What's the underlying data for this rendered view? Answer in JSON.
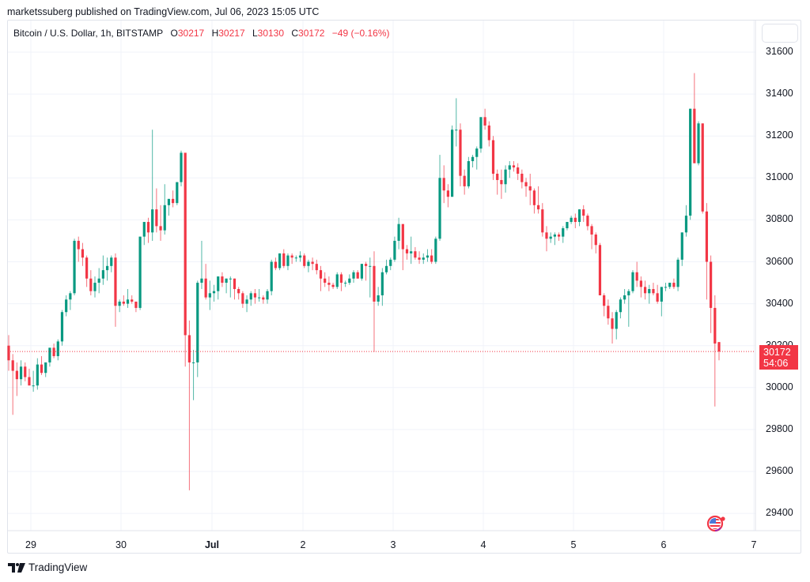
{
  "header": {
    "published_line": "marketssuberg published on TradingView.com, Jul 06, 2023 15:05 UTC"
  },
  "legend": {
    "symbol": "Bitcoin / U.S. Dollar, 1h, BITSTAMP",
    "open_label": "O",
    "open": "30217",
    "high_label": "H",
    "high": "30217",
    "low_label": "L",
    "low": "30130",
    "close_label": "C",
    "close": "30172",
    "change": "−49 (−0.16%)"
  },
  "price_badge": {
    "price": "30172",
    "countdown": "54:06"
  },
  "brand": {
    "name": "TradingView"
  },
  "colors": {
    "up": "#089981",
    "down": "#f23645",
    "grid": "#f0f3fa",
    "axis_text": "#131722"
  },
  "chart_data": {
    "type": "candlestick",
    "title": "Bitcoin / U.S. Dollar, 1h, BITSTAMP",
    "xlabel": "",
    "ylabel": "",
    "ylim": [
      29300,
      31700
    ],
    "y_ticks": [
      31600,
      31400,
      31200,
      31000,
      30800,
      30600,
      30400,
      30200,
      30000,
      29800,
      29600,
      29400
    ],
    "x_ticks": [
      "29",
      "30",
      "Jul",
      "2",
      "3",
      "4",
      "5",
      "6",
      "7"
    ],
    "last_price": 30172,
    "grid": true,
    "candles": [
      [
        30200,
        30250,
        30080,
        30130
      ],
      [
        30130,
        30160,
        29870,
        30080
      ],
      [
        30080,
        30120,
        29960,
        30040
      ],
      [
        30040,
        30130,
        30010,
        30100
      ],
      [
        30100,
        30120,
        30030,
        30050
      ],
      [
        30050,
        30090,
        30020,
        30010
      ],
      [
        30010,
        30080,
        29980,
        30010
      ],
      [
        30010,
        30140,
        29990,
        30110
      ],
      [
        30110,
        30150,
        30060,
        30070
      ],
      [
        30070,
        30120,
        30050,
        30120
      ],
      [
        30120,
        30190,
        30100,
        30190
      ],
      [
        30190,
        30210,
        30140,
        30150
      ],
      [
        30150,
        30230,
        30130,
        30220
      ],
      [
        30220,
        30370,
        30200,
        30360
      ],
      [
        30360,
        30440,
        30340,
        30420
      ],
      [
        30420,
        30460,
        30370,
        30450
      ],
      [
        30450,
        30710,
        30440,
        30700
      ],
      [
        30700,
        30720,
        30600,
        30660
      ],
      [
        30660,
        30690,
        30580,
        30620
      ],
      [
        30620,
        30630,
        30480,
        30520
      ],
      [
        30520,
        30560,
        30440,
        30460
      ],
      [
        30460,
        30530,
        30430,
        30500
      ],
      [
        30500,
        30570,
        30450,
        30520
      ],
      [
        30520,
        30630,
        30490,
        30560
      ],
      [
        30560,
        30620,
        30510,
        30580
      ],
      [
        30580,
        30630,
        30550,
        30620
      ],
      [
        30620,
        30640,
        30290,
        30390
      ],
      [
        30390,
        30420,
        30360,
        30410
      ],
      [
        30410,
        30440,
        30390,
        30400
      ],
      [
        30400,
        30470,
        30380,
        30420
      ],
      [
        30420,
        30440,
        30400,
        30410
      ],
      [
        30410,
        30400,
        30360,
        30380
      ],
      [
        30380,
        30720,
        30370,
        30720
      ],
      [
        30720,
        30780,
        30680,
        30790
      ],
      [
        30790,
        30810,
        30690,
        30740
      ],
      [
        30740,
        31230,
        30700,
        30850
      ],
      [
        30850,
        30950,
        30740,
        30770
      ],
      [
        30770,
        30870,
        30700,
        30750
      ],
      [
        30750,
        30970,
        30730,
        30870
      ],
      [
        30870,
        30900,
        30820,
        30900
      ],
      [
        30900,
        30940,
        30860,
        30880
      ],
      [
        30880,
        30980,
        30870,
        30980
      ],
      [
        30980,
        31130,
        30960,
        31120
      ],
      [
        31120,
        31080,
        30100,
        30250
      ],
      [
        30250,
        30320,
        29510,
        30120
      ],
      [
        30120,
        30180,
        29940,
        30120
      ],
      [
        30120,
        30510,
        30050,
        30500
      ],
      [
        30500,
        30700,
        30470,
        30520
      ],
      [
        30520,
        30590,
        30420,
        30430
      ],
      [
        30430,
        30510,
        30370,
        30450
      ],
      [
        30450,
        30490,
        30410,
        30460
      ],
      [
        30460,
        30530,
        30420,
        30530
      ],
      [
        30530,
        30550,
        30480,
        30500
      ],
      [
        30500,
        30520,
        30450,
        30520
      ],
      [
        30520,
        30530,
        30430,
        30520
      ],
      [
        30520,
        30490,
        30420,
        30470
      ],
      [
        30470,
        30480,
        30420,
        30450
      ],
      [
        30450,
        30460,
        30380,
        30400
      ],
      [
        30400,
        30440,
        30360,
        30420
      ],
      [
        30420,
        30460,
        30390,
        30450
      ],
      [
        30450,
        30470,
        30400,
        30430
      ],
      [
        30430,
        30470,
        30410,
        30430
      ],
      [
        30430,
        30440,
        30400,
        30420
      ],
      [
        30420,
        30470,
        30400,
        30460
      ],
      [
        30460,
        30610,
        30440,
        30600
      ],
      [
        30600,
        30620,
        30560,
        30570
      ],
      [
        30570,
        30640,
        30560,
        30640
      ],
      [
        30640,
        30660,
        30570,
        30580
      ],
      [
        30580,
        30640,
        30560,
        30630
      ],
      [
        30630,
        30640,
        30590,
        30620
      ],
      [
        30620,
        30630,
        30600,
        30620
      ],
      [
        30620,
        30650,
        30600,
        30630
      ],
      [
        30630,
        30640,
        30570,
        30580
      ],
      [
        30580,
        30610,
        30550,
        30600
      ],
      [
        30600,
        30620,
        30560,
        30590
      ],
      [
        30590,
        30610,
        30540,
        30560
      ],
      [
        30560,
        30580,
        30460,
        30520
      ],
      [
        30520,
        30550,
        30480,
        30500
      ],
      [
        30500,
        30530,
        30460,
        30490
      ],
      [
        30490,
        30500,
        30470,
        30480
      ],
      [
        30480,
        30550,
        30470,
        30540
      ],
      [
        30540,
        30550,
        30460,
        30500
      ],
      [
        30500,
        30510,
        30480,
        30500
      ],
      [
        30500,
        30540,
        30490,
        30520
      ],
      [
        30520,
        30560,
        30500,
        30550
      ],
      [
        30550,
        30560,
        30520,
        30520
      ],
      [
        30520,
        30590,
        30510,
        30590
      ],
      [
        30590,
        30600,
        30510,
        30580
      ],
      [
        30580,
        30620,
        30430,
        30580
      ],
      [
        30580,
        30650,
        30170,
        30410
      ],
      [
        30410,
        30480,
        30390,
        30440
      ],
      [
        30440,
        30570,
        30390,
        30550
      ],
      [
        30550,
        30610,
        30540,
        30580
      ],
      [
        30580,
        30620,
        30560,
        30610
      ],
      [
        30610,
        30720,
        30600,
        30700
      ],
      [
        30700,
        30810,
        30660,
        30780
      ],
      [
        30780,
        30750,
        30560,
        30660
      ],
      [
        30660,
        30680,
        30610,
        30640
      ],
      [
        30640,
        30720,
        30590,
        30650
      ],
      [
        30650,
        30670,
        30610,
        30620
      ],
      [
        30620,
        30650,
        30590,
        30610
      ],
      [
        30610,
        30640,
        30590,
        30620
      ],
      [
        30620,
        30660,
        30600,
        30630
      ],
      [
        30630,
        30660,
        30590,
        30600
      ],
      [
        30600,
        30720,
        30590,
        30710
      ],
      [
        30710,
        31110,
        30700,
        31000
      ],
      [
        31000,
        31060,
        30880,
        30940
      ],
      [
        30940,
        30970,
        30860,
        30910
      ],
      [
        30910,
        31250,
        30910,
        31230
      ],
      [
        31230,
        31380,
        31150,
        31230
      ],
      [
        31230,
        31260,
        30960,
        31010
      ],
      [
        31010,
        31040,
        30920,
        30960
      ],
      [
        30960,
        31100,
        30950,
        31080
      ],
      [
        31080,
        31110,
        31050,
        31100
      ],
      [
        31100,
        31150,
        31040,
        31140
      ],
      [
        31140,
        31290,
        31120,
        31290
      ],
      [
        31290,
        31330,
        31230,
        31250
      ],
      [
        31250,
        31270,
        31150,
        31180
      ],
      [
        31180,
        31200,
        30990,
        31020
      ],
      [
        31020,
        31040,
        30920,
        30990
      ],
      [
        30990,
        31040,
        30900,
        30970
      ],
      [
        30970,
        31060,
        30930,
        31040
      ],
      [
        31040,
        31080,
        31000,
        31060
      ],
      [
        31060,
        31080,
        31030,
        31050
      ],
      [
        31050,
        31070,
        30990,
        31020
      ],
      [
        31020,
        31040,
        30950,
        30980
      ],
      [
        30980,
        31000,
        30910,
        30960
      ],
      [
        30960,
        31020,
        30870,
        30940
      ],
      [
        30940,
        30950,
        30830,
        30870
      ],
      [
        30870,
        30960,
        30830,
        30850
      ],
      [
        30850,
        30880,
        30720,
        30740
      ],
      [
        30740,
        30770,
        30650,
        30710
      ],
      [
        30710,
        30740,
        30690,
        30720
      ],
      [
        30720,
        30740,
        30680,
        30730
      ],
      [
        30730,
        30740,
        30700,
        30720
      ],
      [
        30720,
        30770,
        30690,
        30760
      ],
      [
        30760,
        30790,
        30750,
        30790
      ],
      [
        30790,
        30820,
        30780,
        30810
      ],
      [
        30810,
        30830,
        30760,
        30790
      ],
      [
        30790,
        30830,
        30770,
        30850
      ],
      [
        30850,
        30870,
        30790,
        30820
      ],
      [
        30820,
        30830,
        30750,
        30770
      ],
      [
        30770,
        30780,
        30660,
        30730
      ],
      [
        30730,
        30740,
        30640,
        30680
      ],
      [
        30680,
        30690,
        30600,
        30440
      ],
      [
        30440,
        30450,
        30340,
        30390
      ],
      [
        30390,
        30420,
        30300,
        30330
      ],
      [
        30330,
        30360,
        30210,
        30280
      ],
      [
        30280,
        30370,
        30230,
        30360
      ],
      [
        30360,
        30430,
        30330,
        30420
      ],
      [
        30420,
        30470,
        30400,
        30440
      ],
      [
        30440,
        30470,
        30290,
        30460
      ],
      [
        30460,
        30560,
        30450,
        30550
      ],
      [
        30550,
        30600,
        30480,
        30510
      ],
      [
        30510,
        30530,
        30430,
        30480
      ],
      [
        30480,
        30510,
        30420,
        30450
      ],
      [
        30450,
        30490,
        30400,
        30470
      ],
      [
        30470,
        30500,
        30440,
        30450
      ],
      [
        30450,
        30490,
        30400,
        30410
      ],
      [
        30410,
        30480,
        30340,
        30480
      ],
      [
        30480,
        30500,
        30460,
        30480
      ],
      [
        30480,
        30500,
        30470,
        30500
      ],
      [
        30500,
        30520,
        30470,
        30480
      ],
      [
        30480,
        30620,
        30460,
        30610
      ],
      [
        30610,
        30740,
        30580,
        30740
      ],
      [
        30740,
        30870,
        30720,
        30820
      ],
      [
        30820,
        31330,
        30800,
        31330
      ],
      [
        31330,
        31500,
        31080,
        31070
      ],
      [
        31070,
        31270,
        31060,
        31260
      ],
      [
        31260,
        31240,
        30830,
        30840
      ],
      [
        30840,
        30880,
        30420,
        30600
      ],
      [
        30600,
        30630,
        30260,
        30380
      ],
      [
        30380,
        30440,
        29910,
        30210
      ],
      [
        30217,
        30217,
        30130,
        30172
      ]
    ]
  }
}
